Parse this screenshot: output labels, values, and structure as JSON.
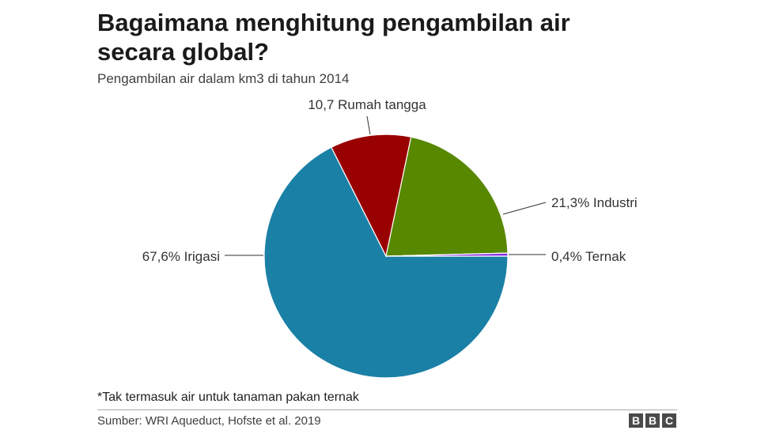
{
  "chart_data": {
    "type": "pie",
    "title": "Bagaimana menghitung pengambilan air secara global?",
    "subtitle": "Pengambilan air dalam km3 di tahun 2014",
    "slices": [
      {
        "label": "Irigasi",
        "value": 67.6,
        "display": "67,6% Irigasi",
        "color": "#1a80a6"
      },
      {
        "label": "Rumah tangga",
        "value": 10.7,
        "display": "10,7 Rumah tangga",
        "color": "#990000"
      },
      {
        "label": "Industri",
        "value": 21.3,
        "display": "21,3% Industri",
        "color": "#588800"
      },
      {
        "label": "Ternak",
        "value": 0.4,
        "display": "0,4% Ternak",
        "color": "#8a2be2"
      }
    ],
    "legend": "none",
    "footnote": "*Tak termasuk air untuk tanaman pakan ternak",
    "source": "Sumber: WRI Aqueduct, Hofste et al. 2019"
  },
  "branding": {
    "logo_letters": [
      "B",
      "B",
      "C"
    ]
  }
}
